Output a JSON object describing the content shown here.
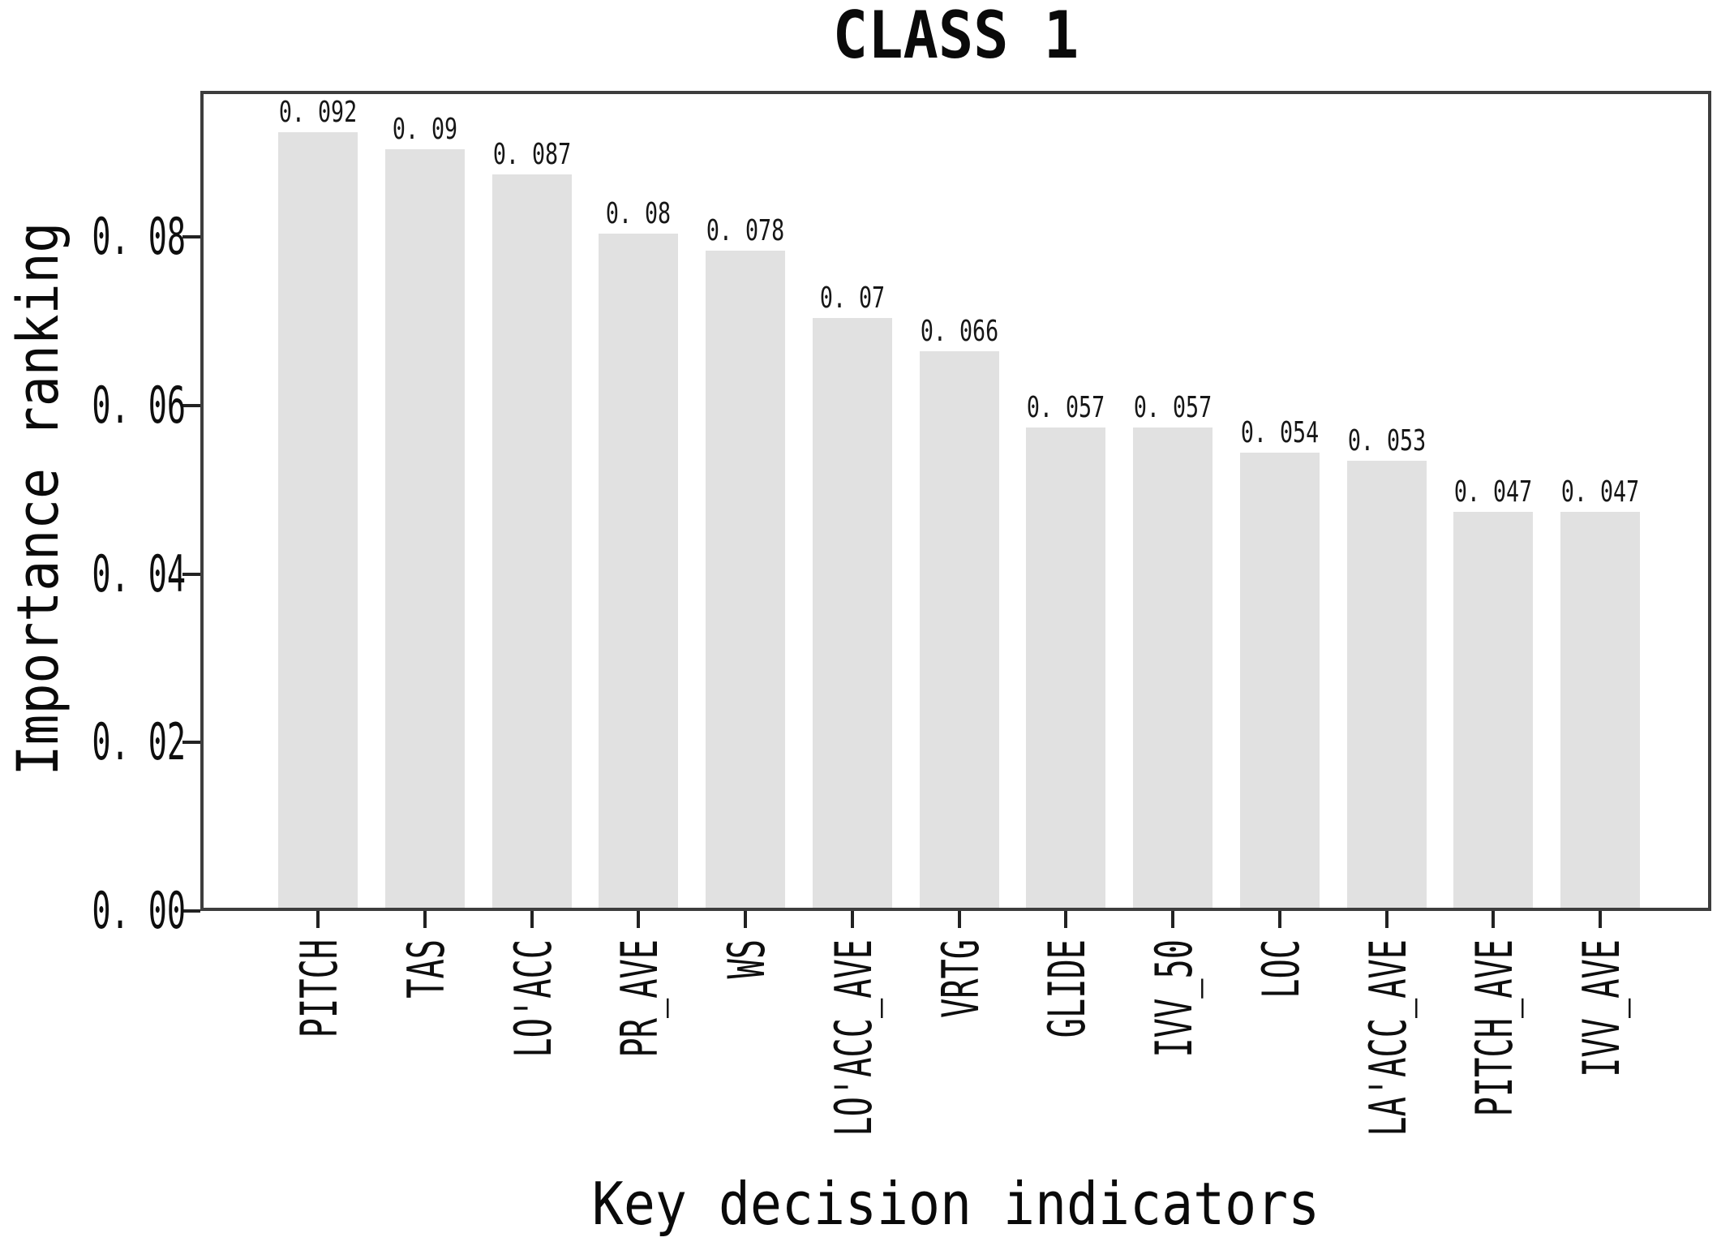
{
  "chart_data": {
    "type": "bar",
    "title": "CLASS 1",
    "xlabel": "Key decision indicators",
    "ylabel": "Importance ranking",
    "categories": [
      "PITCH",
      "TAS",
      "LO'ACC",
      "PR_AVE",
      "WS",
      "LO'ACC_AVE",
      "VRTG",
      "GLIDE",
      "IVV_50",
      "LOC",
      "LA'ACC_AVE",
      "PITCH_AVE",
      "IVV_AVE"
    ],
    "values": [
      0.092,
      0.09,
      0.087,
      0.08,
      0.078,
      0.07,
      0.066,
      0.057,
      0.057,
      0.054,
      0.053,
      0.047,
      0.047
    ],
    "value_labels": [
      "0. 092",
      "0. 09",
      "0. 087",
      "0. 08",
      "0. 078",
      "0. 07",
      "0. 066",
      "0. 057",
      "0. 057",
      "0. 054",
      "0. 053",
      "0. 047",
      "0. 047"
    ],
    "ytick_values": [
      0.0,
      0.02,
      0.04,
      0.06,
      0.08
    ],
    "ytick_labels": [
      "0. 00",
      "0. 02",
      "0. 04",
      "0. 06",
      "0. 08"
    ],
    "ylim": [
      0,
      0.0973
    ],
    "grid": false,
    "legend": null,
    "bar_color": "#e1e1e1",
    "axis_color": "#3d3d3d",
    "tick_color": "#222222",
    "background_color": "#ffffff"
  }
}
